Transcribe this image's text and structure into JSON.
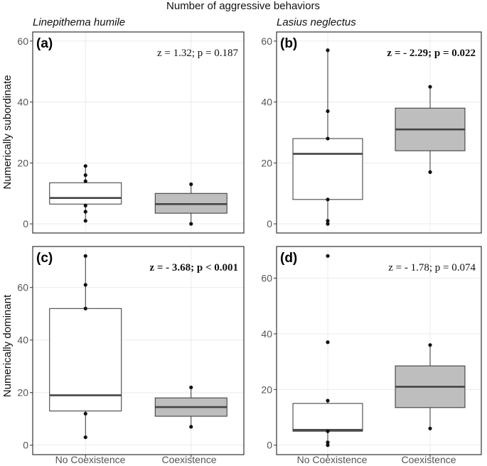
{
  "figure": {
    "title": "Number of aggressive behaviors",
    "row_labels": [
      "Numerically subordinate",
      "Numerically dominant"
    ],
    "column_labels": [
      "Linepithema humile",
      "Lasius neglectus"
    ],
    "x_categories": [
      "No Coexistence",
      "Coexistence"
    ],
    "colors": {
      "no_coexistence_fill": "#ffffff",
      "coexistence_fill": "#bebebe",
      "gridline": "#ebebeb",
      "panel_border": "#333333",
      "box_line": "#333333",
      "median_line": "#444444",
      "point": "#111111"
    }
  },
  "chart_data": [
    {
      "id": "a",
      "type": "box",
      "panel_label": "(a)",
      "species": "Linepithema humile",
      "row": "Numerically subordinate",
      "annotation": "z = 1.32; p = 0.187",
      "annotation_bold": false,
      "ylim": [
        -3,
        63
      ],
      "yticks": [
        0,
        20,
        40,
        60
      ],
      "categories": [
        "No Coexistence",
        "Coexistence"
      ],
      "boxes": [
        {
          "category": "No Coexistence",
          "min": 1,
          "q1": 6.5,
          "median": 8.5,
          "q3": 13.5,
          "max": 19,
          "points": [
            1,
            4,
            6,
            14,
            16,
            19
          ]
        },
        {
          "category": "Coexistence",
          "min": 0,
          "q1": 3.5,
          "median": 6.5,
          "q3": 10,
          "max": 13,
          "points": [
            0,
            13
          ]
        }
      ]
    },
    {
      "id": "b",
      "type": "box",
      "panel_label": "(b)",
      "species": "Lasius neglectus",
      "row": "Numerically subordinate",
      "annotation": "z = - 2.29; p = 0.022",
      "annotation_bold": true,
      "ylim": [
        -3,
        63
      ],
      "yticks": [
        0,
        20,
        40,
        60
      ],
      "categories": [
        "No Coexistence",
        "Coexistence"
      ],
      "boxes": [
        {
          "category": "No Coexistence",
          "min": 0,
          "q1": 8,
          "median": 23,
          "q3": 28,
          "max": 57,
          "points": [
            0,
            1,
            8,
            28,
            37,
            57
          ]
        },
        {
          "category": "Coexistence",
          "min": 17,
          "q1": 24,
          "median": 31,
          "q3": 38,
          "max": 45,
          "points": [
            17,
            45
          ]
        }
      ]
    },
    {
      "id": "c",
      "type": "box",
      "panel_label": "(c)",
      "species": "Linepithema humile",
      "row": "Numerically dominant",
      "annotation": "z = - 3.68; p < 0.001",
      "annotation_bold": true,
      "ylim": [
        -3.6,
        75.6
      ],
      "yticks": [
        0,
        20,
        40,
        60
      ],
      "categories": [
        "No Coexistence",
        "Coexistence"
      ],
      "boxes": [
        {
          "category": "No Coexistence",
          "min": 3,
          "q1": 13,
          "median": 19,
          "q3": 52,
          "max": 72,
          "points": [
            3,
            12,
            52,
            61,
            72
          ]
        },
        {
          "category": "Coexistence",
          "min": 7,
          "q1": 11,
          "median": 14.5,
          "q3": 18,
          "max": 22,
          "points": [
            7,
            22
          ]
        }
      ]
    },
    {
      "id": "d",
      "type": "box",
      "panel_label": "(d)",
      "species": "Lasius neglectus",
      "row": "Numerically dominant",
      "annotation": "z = - 1.78; p = 0.074",
      "annotation_bold": false,
      "ylim": [
        -3.4,
        71.4
      ],
      "yticks": [
        0,
        20,
        40,
        60
      ],
      "categories": [
        "No Coexistence",
        "Coexistence"
      ],
      "boxes": [
        {
          "category": "No Coexistence",
          "min": 0,
          "q1": 5,
          "median": 5.5,
          "q3": 15,
          "max": 16,
          "points": [
            0,
            1,
            5,
            16,
            37,
            68
          ]
        },
        {
          "category": "Coexistence",
          "min": 6,
          "q1": 13.5,
          "median": 21,
          "q3": 28.5,
          "max": 36,
          "points": [
            6,
            36
          ]
        }
      ]
    }
  ]
}
